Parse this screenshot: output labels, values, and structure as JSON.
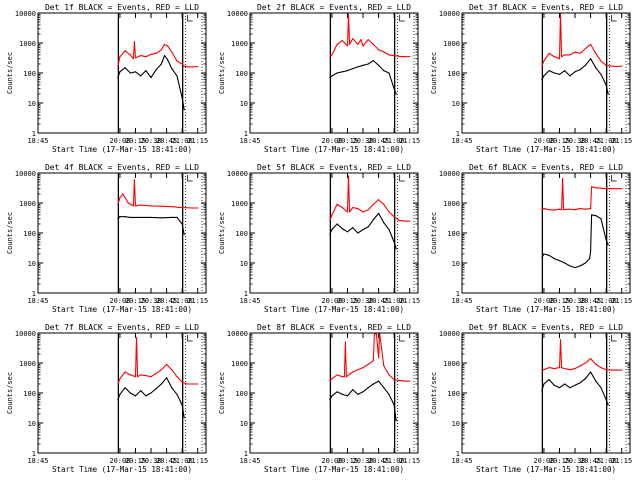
{
  "figure": {
    "start_label_prefix": "Start Time",
    "start_time_text": "17-Mar-15 18:41:00"
  },
  "chart_data": [
    {
      "type": "line",
      "title": "Det 1f BLACK = Events, RED = LLD",
      "xlabel": "Start Time (17-Mar-15 18:41:00)",
      "ylabel": "Counts/sec",
      "yscale": "log",
      "ylim": [
        1,
        10000
      ],
      "x_tick_labels": [
        "18:45",
        "20:00",
        "20:15",
        "20:30",
        "20:45",
        "21:00",
        "21:15"
      ],
      "y_tick_labels": [
        "1",
        "10",
        "100",
        "1000",
        "10000"
      ],
      "series": [
        {
          "name": "LLD",
          "color": "#ff0000",
          "x": [
            "19:58",
            "20:00",
            "20:05",
            "20:10",
            "20:13",
            "20:14",
            "20:15",
            "20:20",
            "20:25",
            "20:30",
            "20:35",
            "20:40",
            "20:43",
            "20:46",
            "20:50",
            "20:55",
            "21:00",
            "21:02",
            "21:05",
            "21:10",
            "21:15"
          ],
          "y": [
            170,
            350,
            550,
            400,
            300,
            1100,
            320,
            380,
            350,
            420,
            450,
            600,
            900,
            800,
            500,
            250,
            200,
            170,
            160,
            160,
            165
          ]
        },
        {
          "name": "Events",
          "color": "#000000",
          "x": [
            "19:58",
            "20:00",
            "20:05",
            "20:10",
            "20:15",
            "20:20",
            "20:25",
            "20:30",
            "20:35",
            "20:40",
            "20:43",
            "20:46",
            "20:50",
            "20:55",
            "21:00",
            "21:02"
          ],
          "y": [
            70,
            110,
            150,
            100,
            110,
            80,
            120,
            70,
            130,
            200,
            380,
            280,
            140,
            80,
            15,
            6
          ]
        }
      ]
    },
    {
      "type": "line",
      "title": "Det 2f BLACK = Events, RED = LLD",
      "xlabel": "Start Time (17-Mar-15 18:41:00)",
      "ylabel": "Counts/sec",
      "yscale": "log",
      "ylim": [
        1,
        10000
      ],
      "x_tick_labels": [
        "18:45",
        "20:00",
        "20:15",
        "20:30",
        "20:45",
        "21:00",
        "21:15"
      ],
      "y_tick_labels": [
        "1",
        "10",
        "100",
        "1000",
        "10000"
      ],
      "series": [
        {
          "name": "LLD",
          "color": "#ff0000",
          "x": [
            "19:58",
            "20:00",
            "20:05",
            "20:10",
            "20:15",
            "20:16",
            "20:17",
            "20:20",
            "20:25",
            "20:28",
            "20:30",
            "20:35",
            "20:40",
            "20:45",
            "20:50",
            "20:55",
            "21:00",
            "21:05",
            "21:10",
            "21:15"
          ],
          "y": [
            350,
            400,
            900,
            1200,
            800,
            9000,
            900,
            1400,
            900,
            1300,
            800,
            1300,
            900,
            600,
            500,
            400,
            380,
            360,
            350,
            350
          ]
        },
        {
          "name": "Events",
          "color": "#000000",
          "x": [
            "19:58",
            "20:00",
            "20:05",
            "20:10",
            "20:15",
            "20:20",
            "20:25",
            "20:30",
            "20:35",
            "20:40",
            "20:45",
            "20:50",
            "20:55",
            "21:00",
            "21:02"
          ],
          "y": [
            70,
            80,
            100,
            110,
            120,
            140,
            160,
            180,
            200,
            260,
            180,
            120,
            100,
            30,
            20
          ]
        }
      ]
    },
    {
      "type": "line",
      "title": "Det 3f BLACK = Events, RED = LLD",
      "xlabel": "Start Time (17-Mar-15 18:41:00)",
      "ylabel": "Counts/sec",
      "yscale": "log",
      "ylim": [
        1,
        10000
      ],
      "x_tick_labels": [
        "18:45",
        "20:00",
        "20:15",
        "20:30",
        "20:45",
        "21:00",
        "21:15"
      ],
      "y_tick_labels": [
        "1",
        "10",
        "100",
        "1000",
        "10000"
      ],
      "series": [
        {
          "name": "LLD",
          "color": "#ff0000",
          "x": [
            "19:58",
            "20:00",
            "20:05",
            "20:10",
            "20:15",
            "20:16",
            "20:17",
            "20:20",
            "20:25",
            "20:30",
            "20:35",
            "20:40",
            "20:45",
            "20:50",
            "20:55",
            "21:00",
            "21:05",
            "21:10",
            "21:15"
          ],
          "y": [
            170,
            250,
            450,
            350,
            300,
            10000,
            350,
            400,
            400,
            500,
            450,
            650,
            900,
            450,
            250,
            180,
            170,
            165,
            170
          ]
        },
        {
          "name": "Events",
          "color": "#000000",
          "x": [
            "19:58",
            "20:00",
            "20:05",
            "20:10",
            "20:15",
            "20:20",
            "20:25",
            "20:30",
            "20:35",
            "20:40",
            "20:45",
            "20:50",
            "20:55",
            "21:00",
            "21:02"
          ],
          "y": [
            60,
            80,
            120,
            100,
            90,
            120,
            80,
            110,
            130,
            180,
            300,
            150,
            90,
            40,
            20
          ]
        }
      ]
    },
    {
      "type": "line",
      "title": "Det 4f BLACK = Events, RED = LLD",
      "xlabel": "Start Time (17-Mar-15 18:41:00)",
      "ylabel": "Counts/sec",
      "yscale": "log",
      "ylim": [
        1,
        10000
      ],
      "x_tick_labels": [
        "18:45",
        "20:00",
        "20:15",
        "20:30",
        "20:45",
        "21:00",
        "21:15"
      ],
      "y_tick_labels": [
        "1",
        "10",
        "100",
        "1000",
        "10000"
      ],
      "series": [
        {
          "name": "LLD",
          "color": "#ff0000",
          "x": [
            "19:58",
            "20:00",
            "20:03",
            "20:08",
            "20:13",
            "20:14",
            "20:15",
            "20:20",
            "20:30",
            "20:40",
            "20:50",
            "21:00",
            "21:10",
            "21:15"
          ],
          "y": [
            900,
            1500,
            2000,
            1000,
            800,
            6000,
            800,
            850,
            800,
            780,
            750,
            700,
            680,
            680
          ]
        },
        {
          "name": "Events",
          "color": "#000000",
          "x": [
            "19:58",
            "20:00",
            "20:05",
            "20:10",
            "20:20",
            "20:30",
            "20:40",
            "20:50",
            "20:55",
            "21:00",
            "21:02"
          ],
          "y": [
            300,
            350,
            350,
            330,
            330,
            330,
            320,
            330,
            330,
            200,
            90
          ]
        }
      ]
    },
    {
      "type": "line",
      "title": "Det 5f BLACK = Events, RED = LLD",
      "xlabel": "Start Time (17-Mar-15 18:41:00)",
      "ylabel": "Counts/sec",
      "yscale": "log",
      "ylim": [
        1,
        10000
      ],
      "x_tick_labels": [
        "18:45",
        "20:00",
        "20:15",
        "20:30",
        "20:45",
        "21:00",
        "21:15"
      ],
      "y_tick_labels": [
        "1",
        "10",
        "100",
        "1000",
        "10000"
      ],
      "series": [
        {
          "name": "LLD",
          "color": "#ff0000",
          "x": [
            "19:58",
            "20:00",
            "20:05",
            "20:10",
            "20:15",
            "20:16",
            "20:17",
            "20:20",
            "20:25",
            "20:30",
            "20:35",
            "20:40",
            "20:45",
            "20:50",
            "20:55",
            "21:00",
            "21:05",
            "21:10",
            "21:15"
          ],
          "y": [
            260,
            400,
            900,
            700,
            500,
            8000,
            500,
            700,
            650,
            500,
            600,
            900,
            1300,
            900,
            500,
            350,
            260,
            250,
            250
          ]
        },
        {
          "name": "Events",
          "color": "#000000",
          "x": [
            "19:58",
            "20:00",
            "20:05",
            "20:10",
            "20:15",
            "20:20",
            "20:25",
            "20:30",
            "20:35",
            "20:40",
            "20:45",
            "20:50",
            "20:55",
            "21:00",
            "21:02"
          ],
          "y": [
            90,
            130,
            200,
            140,
            110,
            150,
            100,
            130,
            160,
            280,
            450,
            220,
            130,
            50,
            30
          ]
        }
      ]
    },
    {
      "type": "line",
      "title": "Det 6f BLACK = Events, RED = LLD",
      "xlabel": "Start Time (17-Mar-15 18:41:00)",
      "ylabel": "Counts/sec",
      "yscale": "log",
      "ylim": [
        1,
        10000
      ],
      "x_tick_labels": [
        "18:45",
        "20:00",
        "20:15",
        "20:30",
        "20:45",
        "21:00",
        "21:15"
      ],
      "y_tick_labels": [
        "1",
        "10",
        "100",
        "1000",
        "10000"
      ],
      "series": [
        {
          "name": "LLD",
          "color": "#ff0000",
          "x": [
            "19:58",
            "20:00",
            "20:05",
            "20:10",
            "20:15",
            "20:17",
            "20:18",
            "20:19",
            "20:25",
            "20:30",
            "20:35",
            "20:40",
            "20:45",
            "20:46",
            "20:50",
            "21:00",
            "21:05",
            "21:10",
            "21:15"
          ],
          "y": [
            600,
            650,
            600,
            580,
            620,
            600,
            6500,
            600,
            620,
            600,
            650,
            620,
            650,
            3500,
            3200,
            3000,
            3000,
            3000,
            3000
          ]
        },
        {
          "name": "Events",
          "color": "#000000",
          "x": [
            "19:58",
            "20:00",
            "20:05",
            "20:10",
            "20:15",
            "20:20",
            "20:25",
            "20:30",
            "20:35",
            "20:40",
            "20:44",
            "20:45",
            "20:46",
            "20:50",
            "20:55",
            "21:00",
            "21:02"
          ],
          "y": [
            15,
            20,
            18,
            14,
            12,
            10,
            8,
            7,
            8,
            10,
            14,
            25,
            400,
            380,
            300,
            60,
            40
          ]
        }
      ]
    },
    {
      "type": "line",
      "title": "Det 7f BLACK = Events, RED = LLD",
      "xlabel": "Start Time (17-Mar-15 18:41:00)",
      "ylabel": "Counts/sec",
      "yscale": "log",
      "ylim": [
        1,
        10000
      ],
      "x_tick_labels": [
        "18:45",
        "20:00",
        "20:15",
        "20:30",
        "20:45",
        "21:00",
        "21:15"
      ],
      "y_tick_labels": [
        "1",
        "10",
        "100",
        "1000",
        "10000"
      ],
      "series": [
        {
          "name": "LLD",
          "color": "#ff0000",
          "x": [
            "19:58",
            "20:00",
            "20:05",
            "20:10",
            "20:15",
            "20:16",
            "20:17",
            "20:20",
            "20:25",
            "20:30",
            "20:35",
            "20:40",
            "20:45",
            "20:50",
            "20:55",
            "21:00",
            "21:05",
            "21:10",
            "21:15"
          ],
          "y": [
            200,
            300,
            500,
            400,
            350,
            7000,
            350,
            400,
            380,
            350,
            450,
            600,
            900,
            600,
            350,
            230,
            200,
            200,
            200
          ]
        },
        {
          "name": "Events",
          "color": "#000000",
          "x": [
            "19:58",
            "20:00",
            "20:05",
            "20:10",
            "20:15",
            "20:20",
            "20:25",
            "20:30",
            "20:35",
            "20:40",
            "20:45",
            "20:50",
            "20:55",
            "21:00",
            "21:02"
          ],
          "y": [
            60,
            90,
            150,
            100,
            80,
            120,
            80,
            100,
            140,
            200,
            320,
            150,
            90,
            40,
            15
          ]
        }
      ]
    },
    {
      "type": "line",
      "title": "Det 8f BLACK = Events, RED = LLD",
      "xlabel": "Start Time (17-Mar-15 18:41:00)",
      "ylabel": "Counts/sec",
      "yscale": "log",
      "ylim": [
        1,
        10000
      ],
      "x_tick_labels": [
        "18:45",
        "20:00",
        "20:15",
        "20:30",
        "20:45",
        "21:00",
        "21:15"
      ],
      "y_tick_labels": [
        "1",
        "10",
        "100",
        "1000",
        "10000"
      ],
      "series": [
        {
          "name": "LLD",
          "color": "#ff0000",
          "x": [
            "19:58",
            "20:00",
            "20:05",
            "20:10",
            "20:12",
            "20:13",
            "20:14",
            "20:20",
            "20:25",
            "20:30",
            "20:35",
            "20:40",
            "20:41",
            "20:43",
            "20:45",
            "20:46",
            "20:50",
            "20:55",
            "21:00",
            "21:05",
            "21:10",
            "21:15"
          ],
          "y": [
            260,
            300,
            400,
            350,
            350,
            5000,
            350,
            500,
            600,
            700,
            900,
            1200,
            10000,
            9000,
            1500,
            10000,
            800,
            400,
            280,
            260,
            250,
            250
          ]
        },
        {
          "name": "Events",
          "color": "#000000",
          "x": [
            "19:58",
            "20:00",
            "20:05",
            "20:10",
            "20:15",
            "20:20",
            "20:25",
            "20:30",
            "20:35",
            "20:40",
            "20:45",
            "20:50",
            "20:55",
            "21:00",
            "21:02"
          ],
          "y": [
            60,
            80,
            110,
            90,
            80,
            130,
            90,
            110,
            150,
            200,
            250,
            150,
            90,
            40,
            12
          ]
        }
      ]
    },
    {
      "type": "line",
      "title": "Det 9f BLACK = Events, RED = LLD",
      "xlabel": "Start Time (17-Mar-15 18:41:00)",
      "ylabel": "Counts/sec",
      "yscale": "log",
      "ylim": [
        1,
        10000
      ],
      "x_tick_labels": [
        "18:45",
        "20:00",
        "20:15",
        "20:30",
        "20:45",
        "21:00",
        "21:15"
      ],
      "y_tick_labels": [
        "1",
        "10",
        "100",
        "1000",
        "10000"
      ],
      "series": [
        {
          "name": "LLD",
          "color": "#ff0000",
          "x": [
            "19:58",
            "20:00",
            "20:05",
            "20:10",
            "20:15",
            "20:16",
            "20:17",
            "20:20",
            "20:25",
            "20:30",
            "20:35",
            "20:40",
            "20:45",
            "20:50",
            "20:55",
            "21:00",
            "21:05",
            "21:10",
            "21:15"
          ],
          "y": [
            550,
            600,
            700,
            650,
            700,
            6000,
            700,
            650,
            600,
            650,
            800,
            1000,
            1400,
            900,
            700,
            600,
            580,
            580,
            580
          ]
        },
        {
          "name": "Events",
          "color": "#000000",
          "x": [
            "19:58",
            "20:00",
            "20:05",
            "20:10",
            "20:15",
            "20:20",
            "20:25",
            "20:30",
            "20:35",
            "20:40",
            "20:45",
            "20:50",
            "20:55",
            "21:00",
            "21:02"
          ],
          "y": [
            120,
            200,
            280,
            180,
            150,
            200,
            150,
            180,
            220,
            300,
            500,
            250,
            150,
            60,
            40
          ]
        }
      ]
    }
  ]
}
